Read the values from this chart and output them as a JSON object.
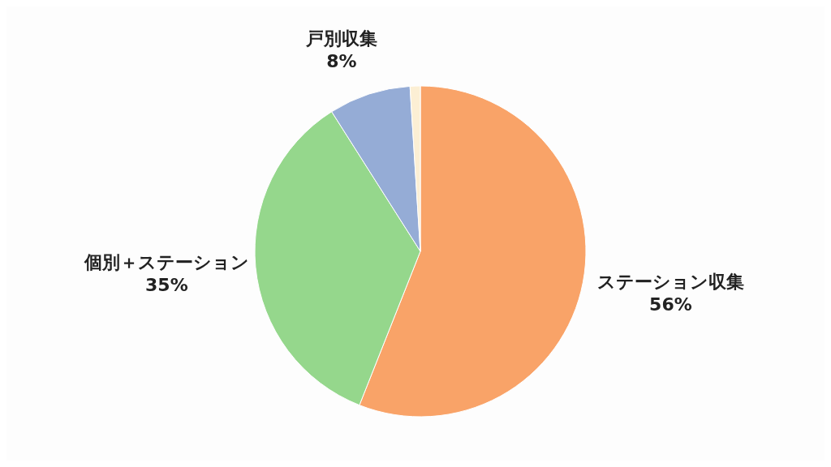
{
  "chart_data": {
    "type": "pie",
    "categories": [
      "ステーション収集",
      "個別＋ステーション",
      "戸別収集",
      null
    ],
    "values": [
      56,
      35,
      8,
      1
    ],
    "value_labels": [
      "56%",
      "35%",
      "8%",
      null
    ],
    "colors": [
      "#f9a368",
      "#95d78c",
      "#95acd6",
      "#fcefd4"
    ]
  }
}
